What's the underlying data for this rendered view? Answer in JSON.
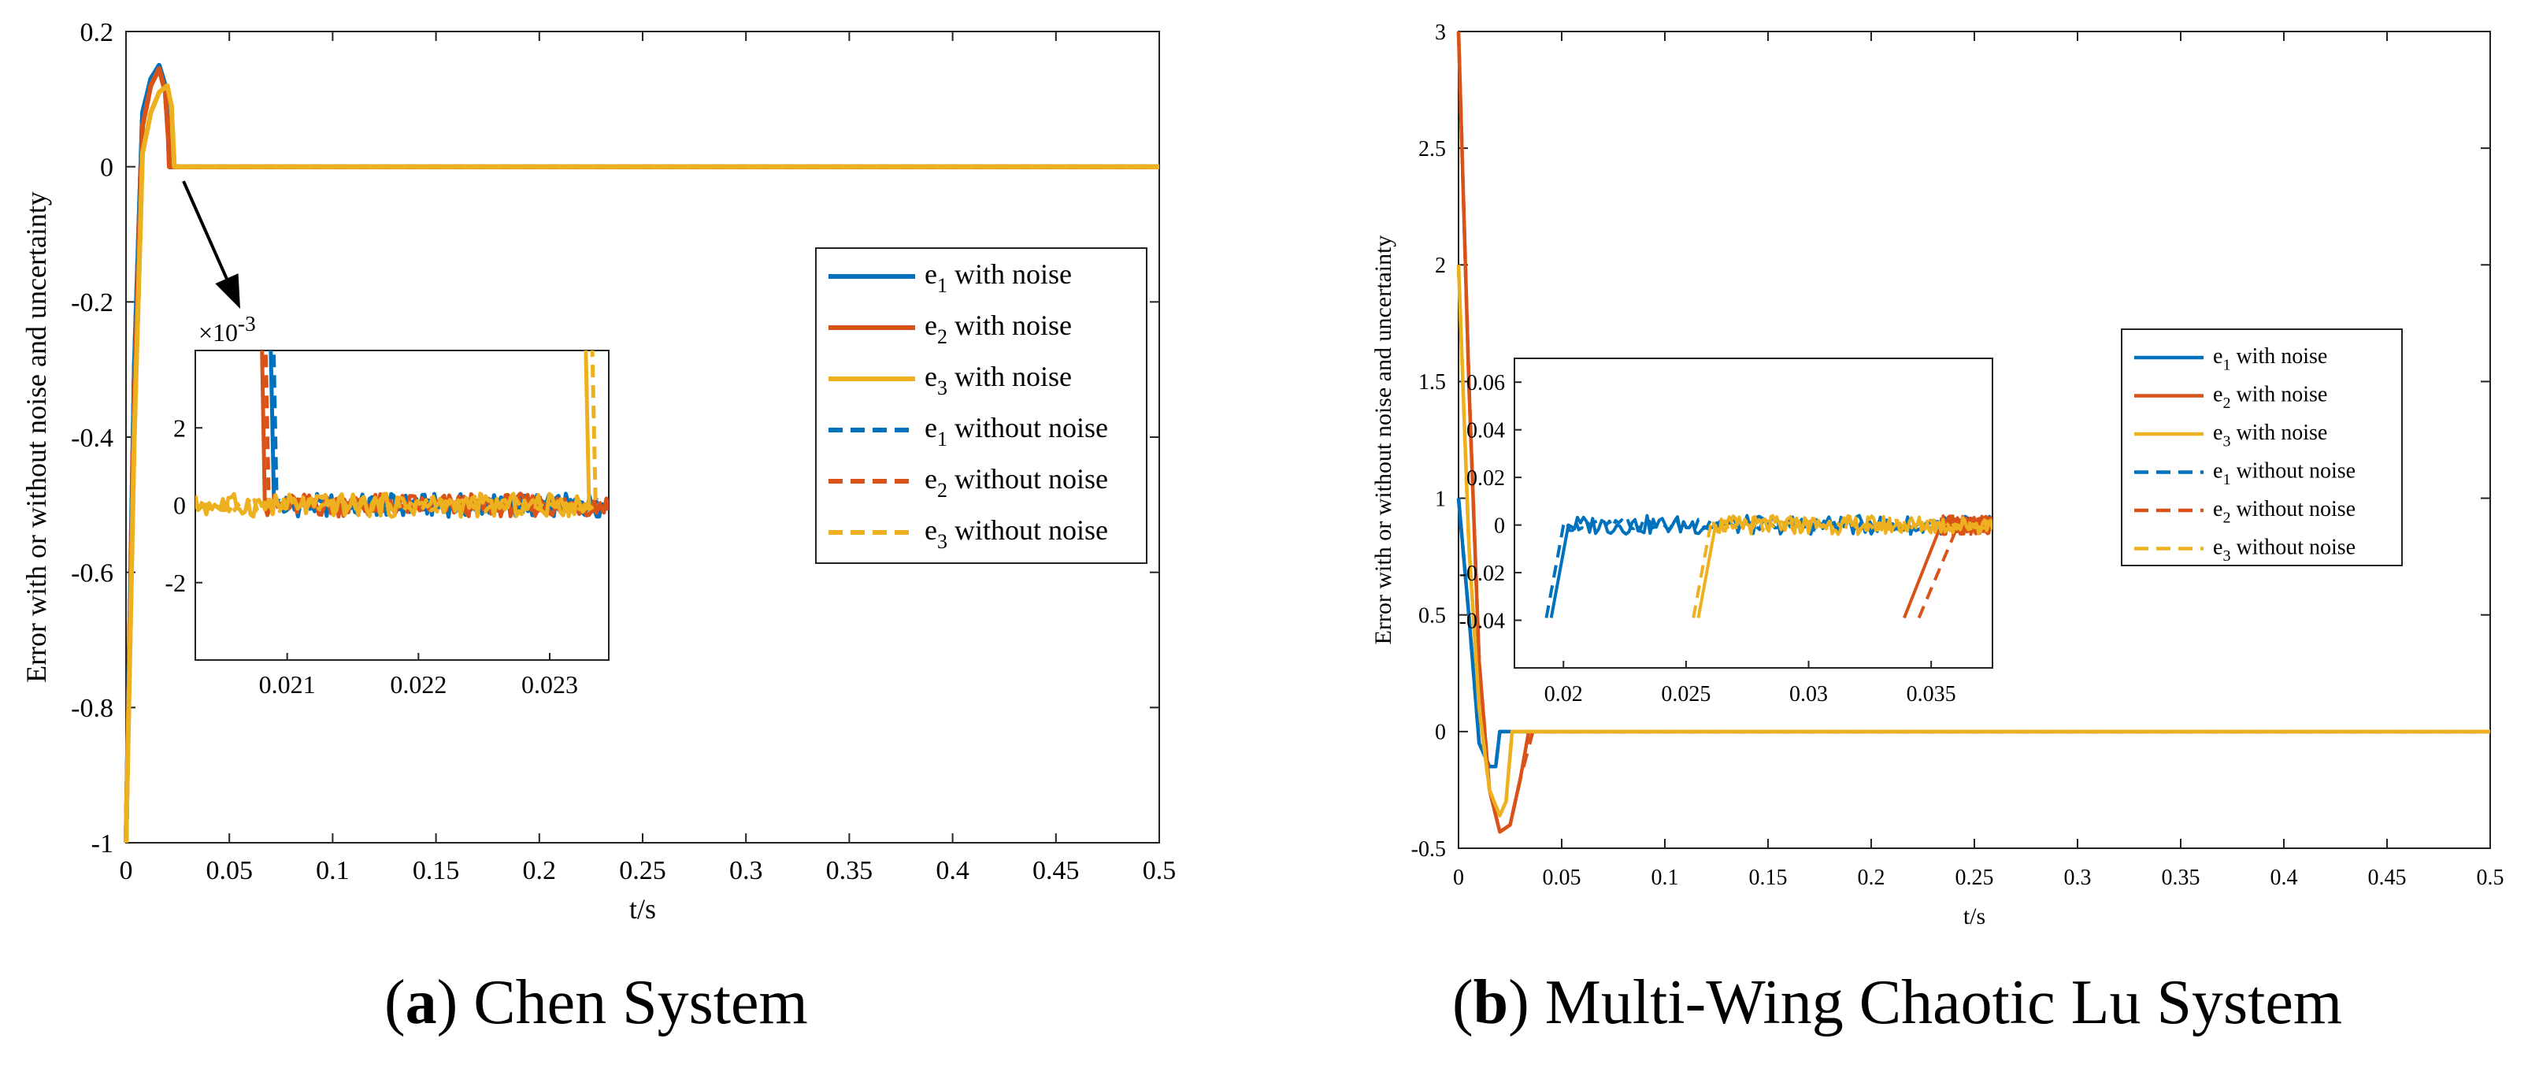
{
  "captions": {
    "a": {
      "letter": "a",
      "title": "Chen System"
    },
    "b": {
      "letter": "b",
      "title": "Multi-Wing Chaotic Lu System"
    }
  },
  "colors": {
    "e1": "#0072BD",
    "e2": "#D95319",
    "e3": "#EDB120"
  },
  "chart_data": [
    {
      "id": "a",
      "type": "line",
      "title": "",
      "xlabel": "t/s",
      "ylabel": "Error with or without noise and uncertainty",
      "xlim": [
        0,
        0.5
      ],
      "ylim": [
        -1,
        0.2
      ],
      "xticks": [
        "0",
        "0.05",
        "0.1",
        "0.15",
        "0.2",
        "0.25",
        "0.3",
        "0.35",
        "0.4",
        "0.45",
        "0.5"
      ],
      "yticks": [
        "-1",
        "-0.8",
        "-0.6",
        "-0.4",
        "-0.2",
        "0",
        "0.2"
      ],
      "series": [
        {
          "name": "e1 with noise",
          "style": "solid",
          "color": "#0072BD",
          "x": [
            0,
            0.004,
            0.008,
            0.012,
            0.016,
            0.019,
            0.0205,
            0.021,
            0.5
          ],
          "y": [
            -1,
            -0.3,
            0.08,
            0.13,
            0.15,
            0.12,
            0.05,
            0,
            0
          ]
        },
        {
          "name": "e2 with noise",
          "style": "solid",
          "color": "#D95319",
          "x": [
            0,
            0.004,
            0.008,
            0.012,
            0.016,
            0.019,
            0.0205,
            0.021,
            0.5
          ],
          "y": [
            -1,
            -0.35,
            0.06,
            0.12,
            0.145,
            0.11,
            0.04,
            0,
            0
          ]
        },
        {
          "name": "e3 with noise",
          "style": "solid",
          "color": "#EDB120",
          "x": [
            0,
            0.004,
            0.008,
            0.012,
            0.016,
            0.02,
            0.022,
            0.0234,
            0.5
          ],
          "y": [
            -1,
            -0.4,
            0.02,
            0.08,
            0.11,
            0.12,
            0.09,
            0,
            0
          ]
        },
        {
          "name": "e1 without noise",
          "style": "dashed",
          "color": "#0072BD",
          "x": [
            0,
            0.004,
            0.008,
            0.012,
            0.016,
            0.019,
            0.0205,
            0.021,
            0.5
          ],
          "y": [
            -1,
            -0.3,
            0.08,
            0.13,
            0.15,
            0.12,
            0.05,
            0,
            0
          ]
        },
        {
          "name": "e2 without noise",
          "style": "dashed",
          "color": "#D95319",
          "x": [
            0,
            0.004,
            0.008,
            0.012,
            0.016,
            0.019,
            0.0205,
            0.021,
            0.5
          ],
          "y": [
            -1,
            -0.35,
            0.06,
            0.12,
            0.145,
            0.11,
            0.04,
            0,
            0
          ]
        },
        {
          "name": "e3 without noise",
          "style": "dashed",
          "color": "#EDB120",
          "x": [
            0,
            0.004,
            0.008,
            0.012,
            0.016,
            0.02,
            0.022,
            0.0234,
            0.5
          ],
          "y": [
            -1,
            -0.4,
            0.02,
            0.08,
            0.11,
            0.12,
            0.09,
            0,
            0
          ]
        }
      ],
      "legend": {
        "placement": "right",
        "entries": [
          {
            "sym": "e",
            "sub": "1",
            "text": " with noise"
          },
          {
            "sym": "e",
            "sub": "2",
            "text": " with noise"
          },
          {
            "sym": "e",
            "sub": "3",
            "text": " with noise"
          },
          {
            "sym": "e",
            "sub": "1",
            "text": " without noise"
          },
          {
            "sym": "e",
            "sub": "2",
            "text": " without noise"
          },
          {
            "sym": "e",
            "sub": "3",
            "text": " without noise"
          }
        ]
      },
      "inset": {
        "xlim": [
          0.0203,
          0.02345
        ],
        "ylim": [
          -0.004,
          0.004
        ],
        "xticks": [
          "0.021",
          "0.022",
          "0.023"
        ],
        "yticks": [
          "-2",
          "0",
          "2"
        ],
        "exponent_base": "×10",
        "exponent_power": "-3",
        "noise_amplitude": 0.0003,
        "series": [
          {
            "name": "e1 with noise",
            "style": "solid",
            "color": "#0072BD",
            "drop_start": 0.02075,
            "drop_end": 0.0209,
            "rise_start": null,
            "rise_end": null
          },
          {
            "name": "e2 with noise",
            "style": "solid",
            "color": "#D95319",
            "drop_start": 0.0207,
            "drop_end": 0.02083,
            "rise_start": null,
            "rise_end": null
          },
          {
            "name": "e3 with noise",
            "style": "solid",
            "color": "#EDB120",
            "drop_start": null,
            "drop_end": null,
            "rise_start": 0.0233,
            "rise_end": 0.02325
          },
          {
            "name": "e1 without noise",
            "style": "dashed",
            "color": "#0072BD",
            "drop_start": 0.02078,
            "drop_end": 0.02092,
            "rise_start": null,
            "rise_end": null
          },
          {
            "name": "e2 without noise",
            "style": "dashed",
            "color": "#D95319",
            "drop_start": 0.02072,
            "drop_end": 0.02086,
            "rise_start": null,
            "rise_end": null
          },
          {
            "name": "e3 without noise",
            "style": "dashed",
            "color": "#EDB120",
            "drop_start": null,
            "drop_end": null,
            "rise_start": 0.02335,
            "rise_end": 0.0233
          }
        ]
      }
    },
    {
      "id": "b",
      "type": "line",
      "title": "",
      "xlabel": "t/s",
      "ylabel": "Error with or without noise and uncertainty",
      "xlim": [
        0,
        0.5
      ],
      "ylim": [
        -0.5,
        3
      ],
      "xticks": [
        "0",
        "0.05",
        "0.1",
        "0.15",
        "0.2",
        "0.25",
        "0.3",
        "0.35",
        "0.4",
        "0.45",
        "0.5"
      ],
      "yticks": [
        "-0.5",
        "0",
        "0.5",
        "1",
        "1.5",
        "2",
        "2.5",
        "3"
      ],
      "series": [
        {
          "name": "e1 with noise",
          "style": "solid",
          "color": "#0072BD",
          "x": [
            0,
            0.005,
            0.01,
            0.015,
            0.018,
            0.02,
            0.5
          ],
          "y": [
            1,
            0.5,
            -0.05,
            -0.15,
            -0.15,
            0,
            0
          ]
        },
        {
          "name": "e2 with noise",
          "style": "solid",
          "color": "#D95319",
          "x": [
            0,
            0.005,
            0.01,
            0.015,
            0.02,
            0.025,
            0.03,
            0.034,
            0.5
          ],
          "y": [
            3,
            1.5,
            0.3,
            -0.25,
            -0.43,
            -0.4,
            -0.2,
            0,
            0
          ]
        },
        {
          "name": "e3 with noise",
          "style": "solid",
          "color": "#EDB120",
          "x": [
            0,
            0.005,
            0.01,
            0.015,
            0.02,
            0.023,
            0.026,
            0.5
          ],
          "y": [
            2,
            0.8,
            0.1,
            -0.25,
            -0.36,
            -0.3,
            0,
            0
          ]
        },
        {
          "name": "e1 without noise",
          "style": "dashed",
          "color": "#0072BD",
          "x": [
            0,
            0.005,
            0.01,
            0.015,
            0.018,
            0.02,
            0.5
          ],
          "y": [
            1,
            0.5,
            -0.05,
            -0.15,
            -0.15,
            0,
            0
          ]
        },
        {
          "name": "e2 without noise",
          "style": "dashed",
          "color": "#D95319",
          "x": [
            0,
            0.005,
            0.01,
            0.015,
            0.02,
            0.025,
            0.03,
            0.036,
            0.5
          ],
          "y": [
            3,
            1.5,
            0.3,
            -0.25,
            -0.43,
            -0.4,
            -0.2,
            0,
            0
          ]
        },
        {
          "name": "e3 without noise",
          "style": "dashed",
          "color": "#EDB120",
          "x": [
            0,
            0.005,
            0.01,
            0.015,
            0.02,
            0.023,
            0.026,
            0.5
          ],
          "y": [
            2,
            0.8,
            0.1,
            -0.25,
            -0.36,
            -0.3,
            0,
            0
          ]
        }
      ],
      "legend": {
        "placement": "right",
        "entries": [
          {
            "sym": "e",
            "sub": "1",
            "text": " with noise"
          },
          {
            "sym": "e",
            "sub": "2",
            "text": " with noise"
          },
          {
            "sym": "e",
            "sub": "3",
            "text": " with noise"
          },
          {
            "sym": "e",
            "sub": "1",
            "text": " without noise"
          },
          {
            "sym": "e",
            "sub": "2",
            "text": " without noise"
          },
          {
            "sym": "e",
            "sub": "3",
            "text": " without noise"
          }
        ]
      },
      "inset": {
        "xlim": [
          0.018,
          0.0375
        ],
        "ylim": [
          -0.06,
          0.07
        ],
        "xticks": [
          "0.02",
          "0.025",
          "0.03",
          "0.035"
        ],
        "yticks": [
          "-0.04",
          "-0.02",
          "0",
          "0.02",
          "0.04",
          "0.06"
        ],
        "exponent_base": "",
        "exponent_power": "",
        "noise_amplitude": 0.004,
        "series": [
          {
            "name": "e1 with noise",
            "style": "solid",
            "color": "#0072BD",
            "rise_start": 0.0195,
            "rise_end": 0.0202,
            "drop_start": null,
            "drop_end": null
          },
          {
            "name": "e2 with noise",
            "style": "solid",
            "color": "#D95319",
            "rise_start": 0.0339,
            "rise_end": 0.0354,
            "drop_start": null,
            "drop_end": null
          },
          {
            "name": "e3 with noise",
            "style": "solid",
            "color": "#EDB120",
            "rise_start": 0.0255,
            "rise_end": 0.0262,
            "drop_start": null,
            "drop_end": null
          },
          {
            "name": "e1 without noise",
            "style": "dashed",
            "color": "#0072BD",
            "rise_start": 0.0193,
            "rise_end": 0.02,
            "drop_start": null,
            "drop_end": null
          },
          {
            "name": "e2 without noise",
            "style": "dashed",
            "color": "#D95319",
            "rise_start": 0.0345,
            "rise_end": 0.0361,
            "drop_start": null,
            "drop_end": null
          },
          {
            "name": "e3 without noise",
            "style": "dashed",
            "color": "#EDB120",
            "rise_start": 0.0253,
            "rise_end": 0.026,
            "drop_start": null,
            "drop_end": null
          }
        ]
      }
    }
  ]
}
